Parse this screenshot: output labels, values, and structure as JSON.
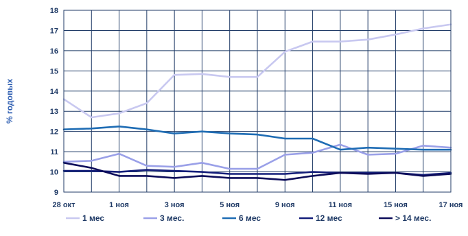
{
  "chart_data": {
    "type": "line",
    "ylabel": "% годовых",
    "ylim": [
      9,
      18
    ],
    "yticks": [
      9,
      10,
      11,
      12,
      13,
      14,
      15,
      16,
      17,
      18
    ],
    "x_tick_labels": [
      "28 окт",
      "1 ноя",
      "3 ноя",
      "5 ноя",
      "9 ноя",
      "11 ноя",
      "15 ноя",
      "17 ноя"
    ],
    "grid": true,
    "legend_position": "bottom",
    "series": [
      {
        "name": "1 мес",
        "color": "#c8c8f0",
        "values": [
          13.6,
          12.7,
          12.9,
          13.4,
          14.8,
          14.85,
          14.7,
          14.7,
          15.95,
          16.45,
          16.45,
          16.55,
          16.8,
          17.1,
          17.3
        ]
      },
      {
        "name": "3 мес.",
        "color": "#9aa0e8",
        "values": [
          10.5,
          10.55,
          10.9,
          10.3,
          10.25,
          10.45,
          10.15,
          10.15,
          10.85,
          10.95,
          11.35,
          10.85,
          10.9,
          11.3,
          11.2
        ]
      },
      {
        "name": "6 мес",
        "color": "#1e6cb4",
        "values": [
          12.1,
          12.15,
          12.25,
          12.1,
          11.9,
          12.0,
          11.9,
          11.85,
          11.65,
          11.65,
          11.1,
          11.2,
          11.15,
          11.1,
          11.1
        ]
      },
      {
        "name": "12 мес",
        "color": "#141e7a",
        "values": [
          10.05,
          10.05,
          10.0,
          10.1,
          10.05,
          10.0,
          9.9,
          9.9,
          9.9,
          10.0,
          9.95,
          9.95,
          9.95,
          9.85,
          9.95
        ]
      },
      {
        "name": "> 14 мес.",
        "color": "#0c0c5a",
        "values": [
          10.45,
          10.2,
          9.8,
          9.8,
          9.7,
          9.8,
          9.7,
          9.7,
          9.6,
          9.8,
          9.95,
          9.9,
          9.95,
          9.8,
          9.9
        ]
      }
    ]
  }
}
